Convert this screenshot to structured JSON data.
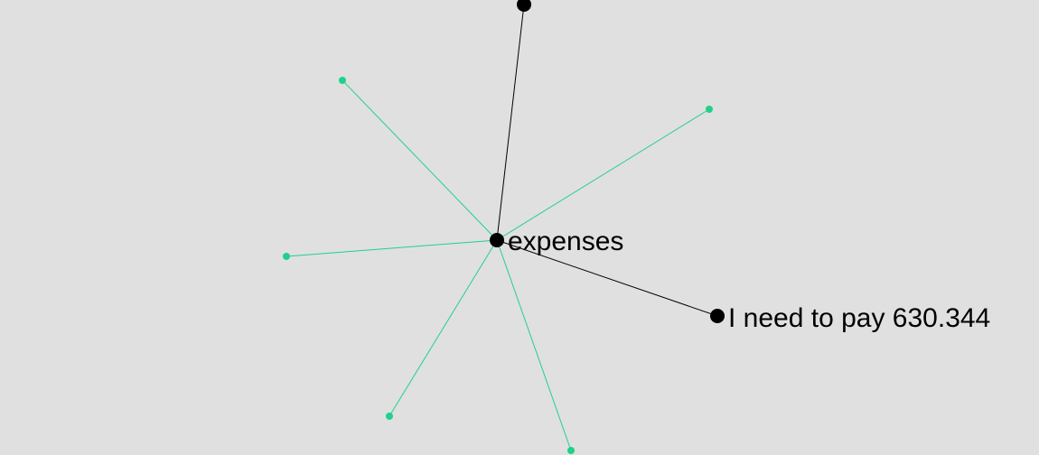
{
  "graph": {
    "colors": {
      "background": "#e0e0e0",
      "primary_node": "#000000",
      "primary_edge": "#000000",
      "secondary_node": "#1fd18a",
      "secondary_edge": "#1fd18a"
    },
    "nodes": [
      {
        "id": "hub",
        "label": "expenses",
        "kind": "primary"
      },
      {
        "id": "note",
        "label": "I need to pay 630.344",
        "kind": "primary"
      },
      {
        "id": "top",
        "label": "",
        "kind": "primary"
      },
      {
        "id": "g1",
        "label": "",
        "kind": "secondary"
      },
      {
        "id": "g2",
        "label": "",
        "kind": "secondary"
      },
      {
        "id": "g3",
        "label": "",
        "kind": "secondary"
      },
      {
        "id": "g4",
        "label": "",
        "kind": "secondary"
      },
      {
        "id": "g5",
        "label": "",
        "kind": "secondary"
      }
    ],
    "edges": [
      {
        "from": "hub",
        "to": "top",
        "kind": "primary"
      },
      {
        "from": "hub",
        "to": "note",
        "kind": "primary"
      },
      {
        "from": "hub",
        "to": "g1",
        "kind": "secondary"
      },
      {
        "from": "hub",
        "to": "g2",
        "kind": "secondary"
      },
      {
        "from": "hub",
        "to": "g3",
        "kind": "secondary"
      },
      {
        "from": "hub",
        "to": "g4",
        "kind": "secondary"
      },
      {
        "from": "hub",
        "to": "g5",
        "kind": "secondary"
      }
    ]
  }
}
